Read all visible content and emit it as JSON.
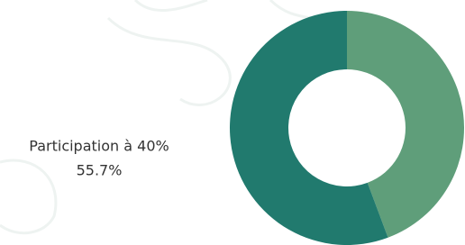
{
  "chart_data": {
    "type": "pie",
    "donut": true,
    "categories": [
      null,
      "Participation à 40%"
    ],
    "values": [
      44.3,
      55.7
    ],
    "value_labels": [
      null,
      "55.7%"
    ],
    "colors": [
      "#5f9e7a",
      "#217a6e"
    ]
  }
}
